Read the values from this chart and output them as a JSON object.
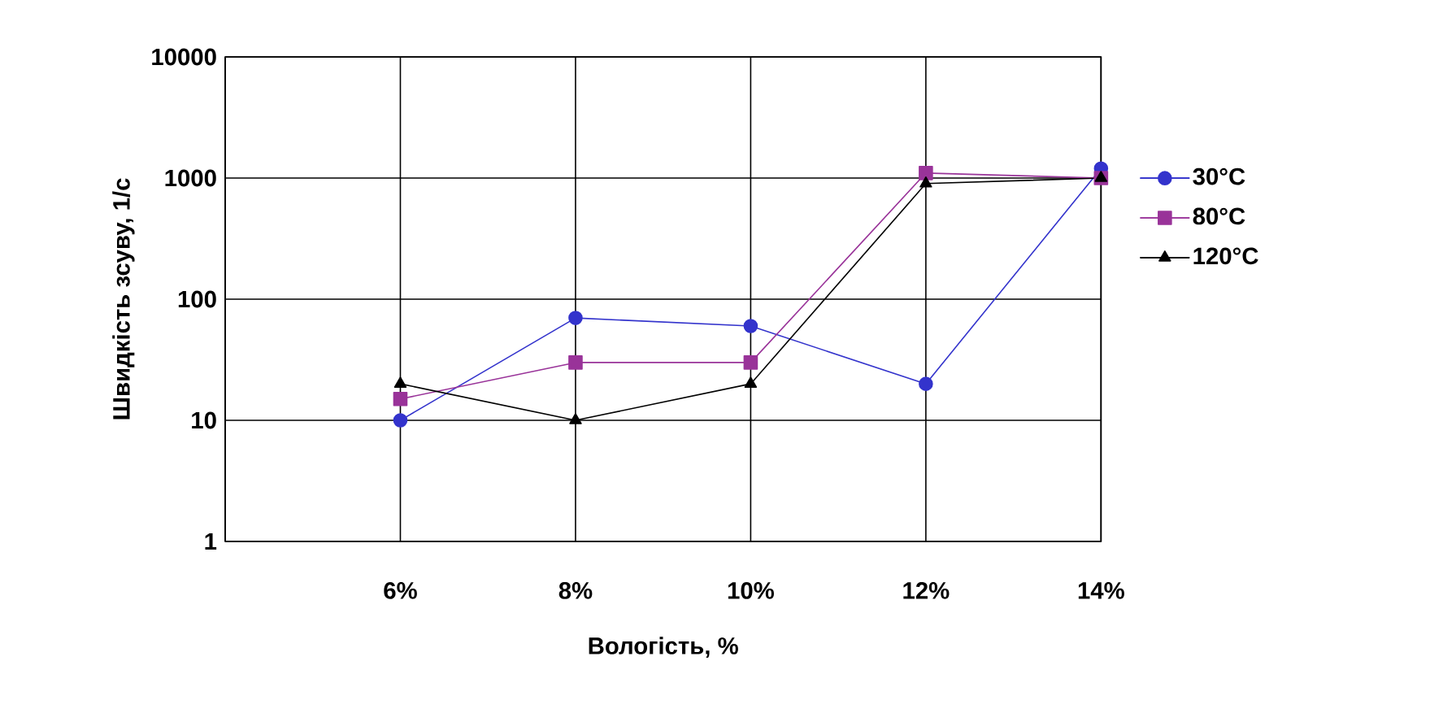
{
  "chart_data": {
    "type": "line",
    "xlabel": "Вологість, %",
    "ylabel": "Швидкість зсуву, 1/с",
    "categories": [
      null,
      "6%",
      "8%",
      "10%",
      "12%",
      "14%"
    ],
    "series": [
      {
        "name": "30°C",
        "color": "#3333cc",
        "marker": "circle",
        "values": [
          null,
          10,
          70,
          60,
          20,
          1200
        ]
      },
      {
        "name": "80°C",
        "color": "#993399",
        "marker": "square",
        "values": [
          null,
          15,
          30,
          30,
          1100,
          1000
        ]
      },
      {
        "name": "120°C",
        "color": "#000000",
        "marker": "triangle",
        "values": [
          null,
          20,
          10,
          20,
          900,
          1000
        ]
      }
    ],
    "log": "y",
    "ylim": [
      1,
      10000
    ],
    "yticks": [
      1,
      10,
      100,
      1000,
      10000
    ],
    "grid": true,
    "legend": "right"
  }
}
